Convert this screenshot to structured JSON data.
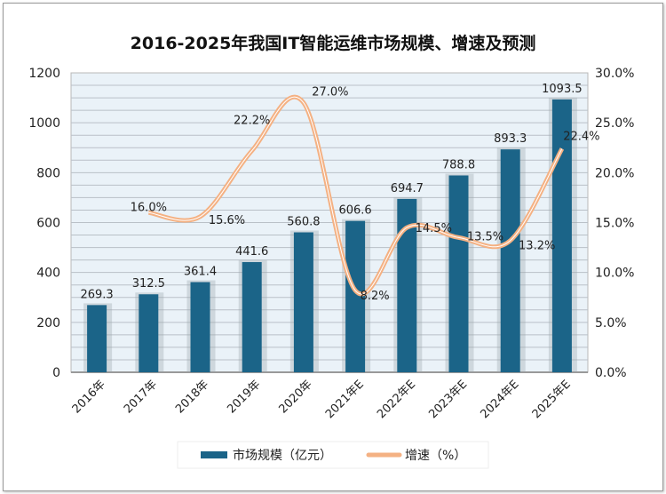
{
  "chart_data": {
    "type": "bar+line",
    "title": "2016-2025年我国IT智能运维市场规模、增速及预测",
    "categories": [
      "2016年",
      "2017年",
      "2018年",
      "2019年",
      "2020年",
      "2021年E",
      "2022年E",
      "2023年E",
      "2024年E",
      "2025年E"
    ],
    "series": [
      {
        "name": "市场规模（亿元）",
        "type": "bar",
        "axis": "left",
        "color": "#1b6488",
        "values": [
          269.3,
          312.5,
          361.4,
          441.6,
          560.8,
          606.6,
          694.7,
          788.8,
          893.3,
          1093.5
        ],
        "labels": [
          "269.3",
          "312.5",
          "361.4",
          "441.6",
          "560.8",
          "606.6",
          "694.7",
          "788.8",
          "893.3",
          "1093.5"
        ]
      },
      {
        "name": "增速（%）",
        "type": "line",
        "axis": "right",
        "color": "#f4b183",
        "values": [
          null,
          16.0,
          15.6,
          22.2,
          27.0,
          8.2,
          14.5,
          13.5,
          13.2,
          22.4
        ],
        "labels": [
          "",
          "16.0%",
          "15.6%",
          "22.2%",
          "27.0%",
          "8.2%",
          "14.5%",
          "13.5%",
          "13.2%",
          "22.4%"
        ]
      }
    ],
    "y_left": {
      "range": [
        0,
        1200
      ],
      "ticks": [
        "0",
        "200",
        "400",
        "600",
        "800",
        "1000",
        "1200"
      ]
    },
    "y_right": {
      "range": [
        0,
        30
      ],
      "ticks": [
        "0.0%",
        "5.0%",
        "10.0%",
        "15.0%",
        "20.0%",
        "25.0%",
        "30.0%"
      ]
    },
    "grid": true,
    "legend": "bottom"
  }
}
